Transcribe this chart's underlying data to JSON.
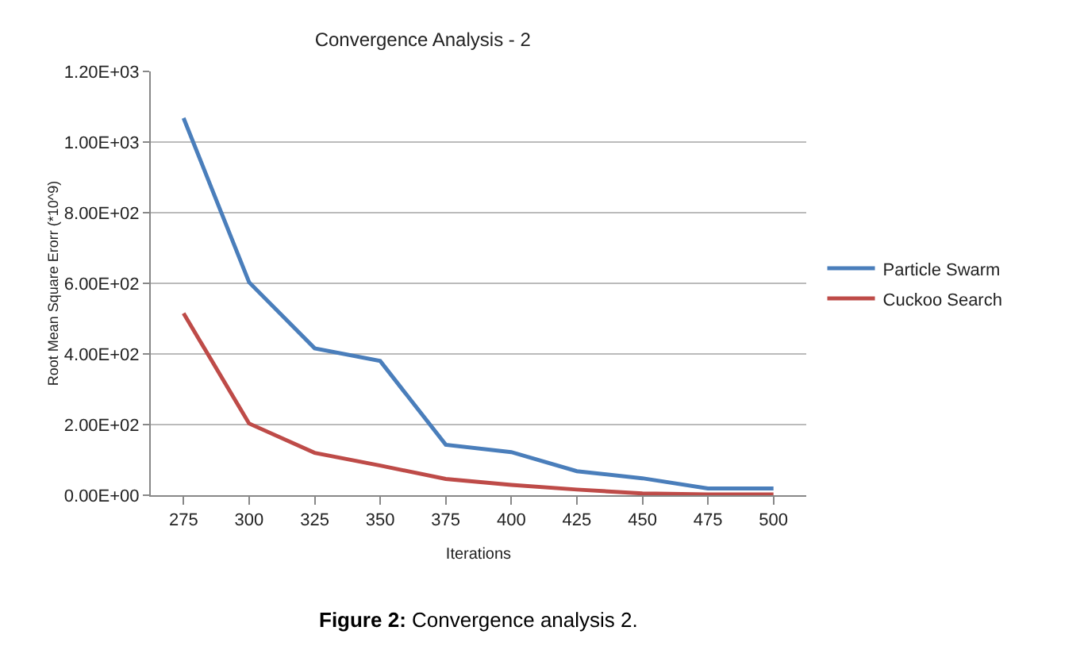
{
  "chart_data": {
    "type": "line",
    "title": "Convergence Analysis - 2",
    "xlabel": "Iterations",
    "ylabel": "Root Mean Square Erorr (*10^9)",
    "categories": [
      "275",
      "300",
      "325",
      "350",
      "375",
      "400",
      "425",
      "450",
      "475",
      "500"
    ],
    "series": [
      {
        "name": "Particle Swarm",
        "color": "#4a7ebb",
        "values": [
          1068,
          603,
          416,
          380,
          143,
          122,
          68,
          48,
          19,
          19
        ]
      },
      {
        "name": "Cuckoo Search",
        "color": "#be4b48",
        "values": [
          515,
          203,
          120,
          84,
          46,
          29,
          16,
          5,
          2,
          2
        ]
      }
    ],
    "ylim": [
      0,
      1200
    ],
    "yticks": [
      {
        "value": 0,
        "label": "0.00E+00"
      },
      {
        "value": 200,
        "label": "2.00E+02"
      },
      {
        "value": 400,
        "label": "4.00E+02"
      },
      {
        "value": 600,
        "label": "6.00E+02"
      },
      {
        "value": 800,
        "label": "8.00E+02"
      },
      {
        "value": 1000,
        "label": "1.00E+03"
      },
      {
        "value": 1200,
        "label": "1.20E+03"
      }
    ],
    "grid": "y",
    "legend": "right",
    "marker": "none",
    "line_style": "solid",
    "annotations": [
      "Figure 2: Convergence analysis 2."
    ]
  }
}
